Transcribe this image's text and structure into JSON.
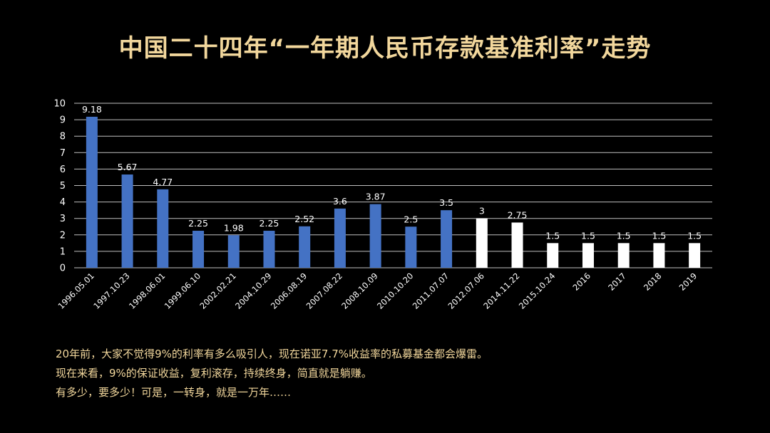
{
  "title": "中国二十四年“一年期人民币存款基准利率”走势",
  "notes": [
    "20年前，大家不觉得9%的利率有多么吸引人，现在诺亚7.7%收益率的私募基金都会爆雷。",
    "现在来看，9%的保证收益，复利滚存，持续终身，简直就是躺赚。",
    "有多少，要多少！可是，一转身，就是一万年……"
  ],
  "colors": {
    "background": "#000000",
    "title": "#f2d79c",
    "bar_blue": "#4472c4",
    "bar_white": "#ffffff",
    "text": "#ffffff",
    "grid": "#bfbfbf"
  },
  "chart_data": {
    "type": "bar",
    "categories": [
      "1996.05.01",
      "1997.10.23",
      "1998.06.01",
      "1999.06.10",
      "2002.02.21",
      "2004.10.29",
      "2006.08.19",
      "2007.08.22",
      "2008.10.09",
      "2010.10.20",
      "2011.07.07",
      "2012.07.06",
      "2014.11.22",
      "2015.10.24",
      "2016",
      "2017",
      "2018",
      "2019"
    ],
    "values": [
      9.18,
      5.67,
      4.77,
      2.25,
      1.98,
      2.25,
      2.52,
      3.6,
      3.87,
      2.5,
      3.5,
      3,
      2.75,
      1.5,
      1.5,
      1.5,
      1.5,
      1.5
    ],
    "value_labels": [
      "9.18",
      "5.67",
      "4.77",
      "2.25",
      "1.98",
      "2.25",
      "2.52",
      "3.6",
      "3.87",
      "2.5",
      "3.5",
      "3",
      "2.75",
      "1.5",
      "1.5",
      "1.5",
      "1.5",
      "1.5"
    ],
    "bar_colors": [
      "#4472c4",
      "#4472c4",
      "#4472c4",
      "#4472c4",
      "#4472c4",
      "#4472c4",
      "#4472c4",
      "#4472c4",
      "#4472c4",
      "#4472c4",
      "#4472c4",
      "#ffffff",
      "#ffffff",
      "#ffffff",
      "#ffffff",
      "#ffffff",
      "#ffffff",
      "#ffffff"
    ],
    "yticks": [
      "0",
      "1",
      "2",
      "3",
      "4",
      "5",
      "6",
      "7",
      "8",
      "9",
      "10"
    ],
    "ylim": [
      0,
      10
    ],
    "grid": true,
    "xlabel": "",
    "ylabel": ""
  }
}
